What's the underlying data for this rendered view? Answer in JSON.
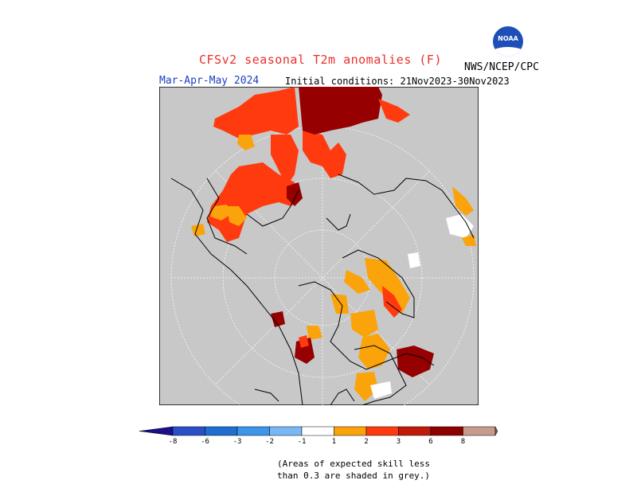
{
  "header": {
    "title": "CFSv2 seasonal T2m anomalies (F)",
    "agency": "NWS/NCEP/CPC",
    "season": "Mar-Apr-May 2024",
    "initial_conditions": "Initial conditions: 21Nov2023-30Nov2023",
    "logo_text": "NOAA"
  },
  "legend": {
    "labels": [
      "-8",
      "-6",
      "-3",
      "-2",
      "-1",
      "1",
      "2",
      "3",
      "6",
      "8"
    ],
    "colors": [
      "#1a0f8c",
      "#2b4fc9",
      "#1f6fd0",
      "#3c95ea",
      "#7ab7f5",
      "#ffffff",
      "#fba30a",
      "#ff3a0f",
      "#c01a0a",
      "#8d0000",
      "#c79b8d",
      "#8a5a4d"
    ]
  },
  "map": {
    "colors": {
      "background": "#c8c8c8",
      "land_outline": "#000000",
      "grid": "#ffffff",
      "orange": "#fba30a",
      "red": "#ff3a0f",
      "dark_red": "#960000",
      "white": "#ffffff"
    }
  },
  "note": {
    "line1": "(Areas of expected skill less",
    "line2": "than 0.3 are shaded in grey.)"
  }
}
